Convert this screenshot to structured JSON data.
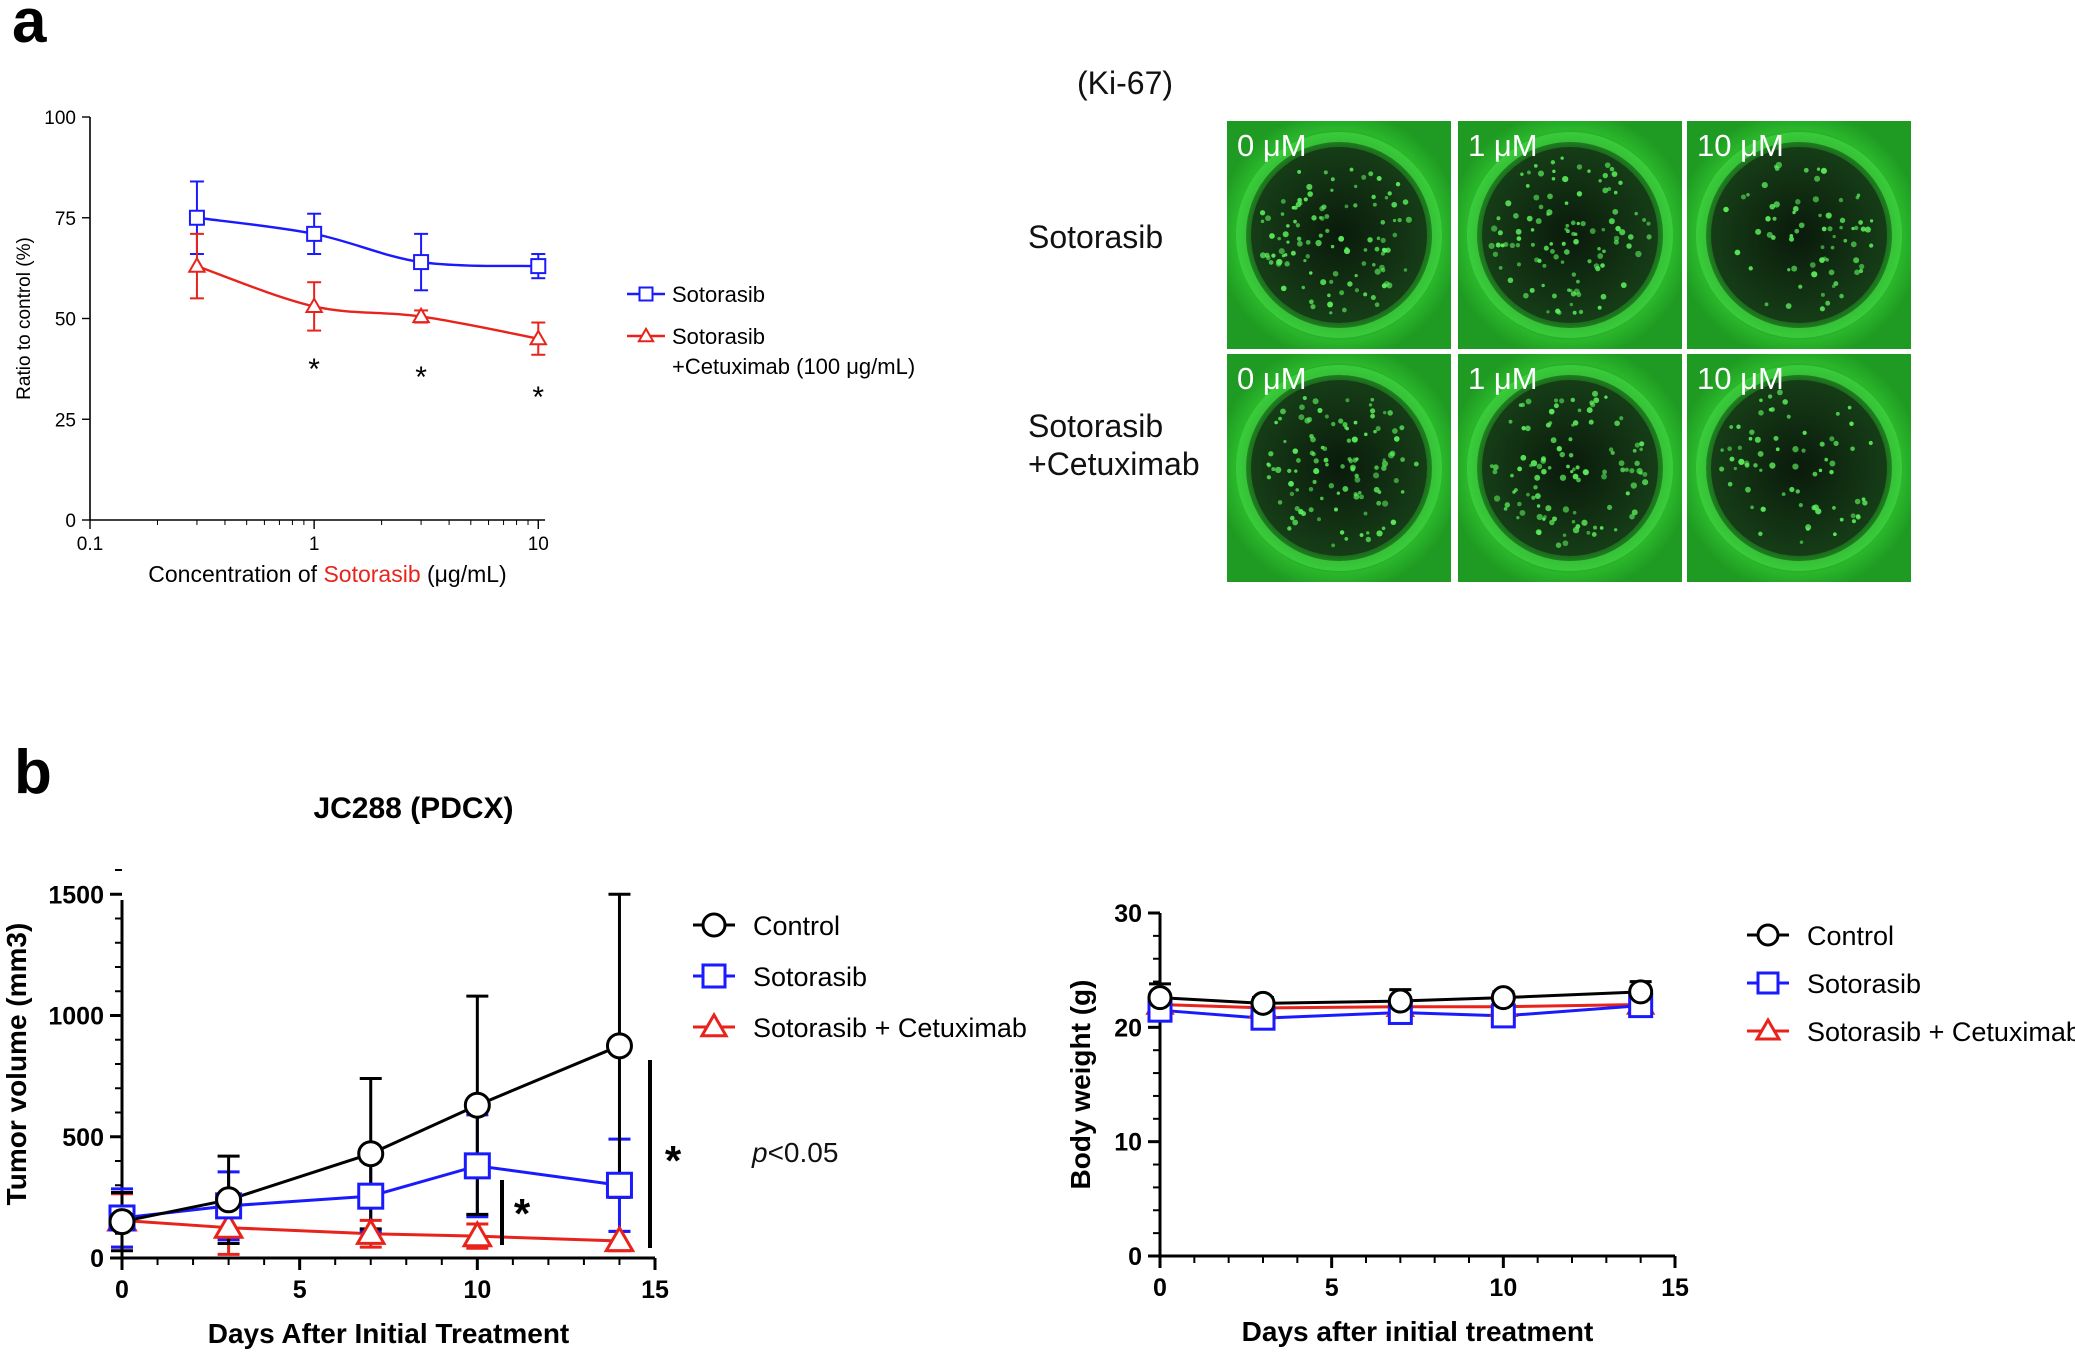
{
  "panel_labels": {
    "a": "a",
    "b": "b"
  },
  "micrographs": {
    "title": "(Ki-67)",
    "row_labels": [
      [
        "Sotorasib"
      ],
      [
        "Sotorasib",
        "+Cetuximab"
      ]
    ],
    "column_labels": [
      "0 μM",
      "1 μM",
      "10 μM"
    ],
    "stain_color": "#22cc22"
  },
  "significance": {
    "star": "*",
    "p_value_italic": "p",
    "p_value_rest": "<0.05"
  },
  "chart_data": [
    {
      "type": "line",
      "xlabel_parts": [
        {
          "text": "Concentration of ",
          "color": "#000000"
        },
        {
          "text": "Sotorasib",
          "color": "#e8231c"
        },
        {
          "text": " (μg/mL)",
          "color": "#000000"
        }
      ],
      "ylabel": "Ratio to control (%)",
      "xscale": "log",
      "xlim": [
        0.1,
        10
      ],
      "ylim": [
        0,
        100
      ],
      "xticks": [
        0.1,
        1,
        10
      ],
      "xtick_labels": [
        "0.1",
        "1",
        "10"
      ],
      "yticks": [
        0,
        25,
        50,
        75,
        100
      ],
      "ytick_labels": [
        "0",
        "25",
        "50",
        "75",
        "100"
      ],
      "legend_position": "right",
      "series": [
        {
          "name": "Sotorasib",
          "color": "#1a1aff",
          "marker": "square",
          "x": [
            0.3,
            1,
            3,
            10
          ],
          "y": [
            75,
            71,
            64,
            63
          ],
          "err": [
            9,
            5,
            7,
            3
          ]
        },
        {
          "name": "Sotorasib\n+Cetuximab (100 μg/mL)",
          "color": "#e8231c",
          "marker": "triangle",
          "x": [
            0.3,
            1,
            3,
            10
          ],
          "y": [
            63,
            53,
            50.5,
            45
          ],
          "err": [
            8,
            6,
            1.5,
            4
          ]
        }
      ],
      "annotations": [
        {
          "text": "*",
          "x": 1,
          "y": 38
        },
        {
          "text": "*",
          "x": 3,
          "y": 36
        },
        {
          "text": "*",
          "x": 10,
          "y": 31
        }
      ]
    },
    {
      "type": "line",
      "title": "JC288 (PDCX)",
      "xlabel": "Days After Initial Treatment",
      "ylabel": "Tumor volume (mm3)",
      "xlim": [
        0,
        15
      ],
      "ylim": [
        0,
        1600
      ],
      "xticks": [
        0,
        5,
        10,
        15
      ],
      "yticks": [
        0,
        500,
        1000,
        1500
      ],
      "legend_position": "top-right",
      "series": [
        {
          "name": "Control",
          "color": "#000000",
          "marker": "circle",
          "x": [
            0,
            3,
            7,
            10,
            14
          ],
          "y": [
            150,
            240,
            430,
            630,
            875
          ],
          "err": [
            120,
            180,
            310,
            450,
            625
          ]
        },
        {
          "name": "Sotorasib",
          "color": "#1a1aff",
          "marker": "square",
          "x": [
            0,
            3,
            7,
            10,
            14
          ],
          "y": [
            165,
            215,
            255,
            380,
            300
          ],
          "err": [
            120,
            140,
            145,
            210,
            190
          ]
        },
        {
          "name": "Sotorasib + Cetuximab",
          "color": "#e8231c",
          "marker": "triangle",
          "x": [
            0,
            3,
            7,
            10,
            14
          ],
          "y": [
            155,
            125,
            100,
            90,
            70
          ],
          "err": [
            110,
            110,
            55,
            50,
            40
          ]
        }
      ]
    },
    {
      "type": "line",
      "xlabel": "Days after initial treatment",
      "ylabel": "Body weight (g)",
      "xlim": [
        0,
        15
      ],
      "ylim": [
        0,
        30
      ],
      "xticks": [
        0,
        5,
        10,
        15
      ],
      "yticks": [
        0,
        10,
        20,
        30
      ],
      "legend_position": "top-right",
      "series": [
        {
          "name": "Control",
          "color": "#000000",
          "marker": "circle",
          "x": [
            0,
            3,
            7,
            10,
            14
          ],
          "y": [
            22.6,
            22.1,
            22.3,
            22.6,
            23.1
          ],
          "err": [
            1.2,
            0.5,
            1.0,
            0.5,
            0.9
          ]
        },
        {
          "name": "Sotorasib",
          "color": "#1a1aff",
          "marker": "square",
          "x": [
            0,
            3,
            7,
            10,
            14
          ],
          "y": [
            21.5,
            20.8,
            21.3,
            21.0,
            21.9
          ],
          "err": [
            0.6,
            0.6,
            0.6,
            0.6,
            0.5
          ]
        },
        {
          "name": "Sotorasib + Cetuximab",
          "color": "#e8231c",
          "marker": "triangle",
          "x": [
            0,
            3,
            7,
            10,
            14
          ],
          "y": [
            22.0,
            21.7,
            21.8,
            21.8,
            22.0
          ],
          "err": [
            0.4,
            0.4,
            0.4,
            0.4,
            0.4
          ]
        }
      ]
    }
  ]
}
